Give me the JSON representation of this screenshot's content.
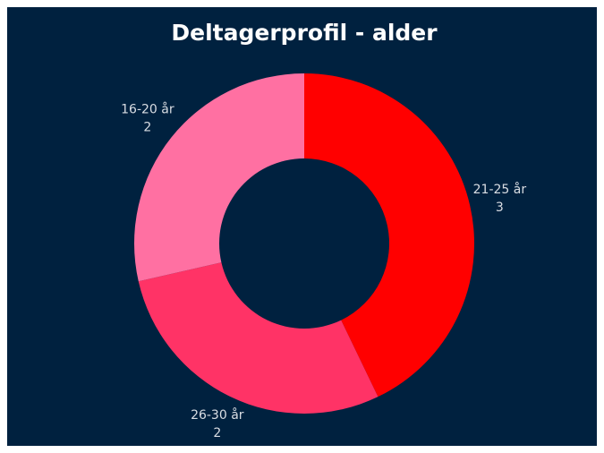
{
  "chart_data": {
    "type": "donut",
    "title": "Deltagerprofil - alder",
    "categories": [
      "21-25 år",
      "26-30 år",
      "16-20 år"
    ],
    "values": [
      3,
      2,
      2
    ],
    "colors": [
      "#ff0000",
      "#ff3366",
      "#ff70a2"
    ]
  }
}
